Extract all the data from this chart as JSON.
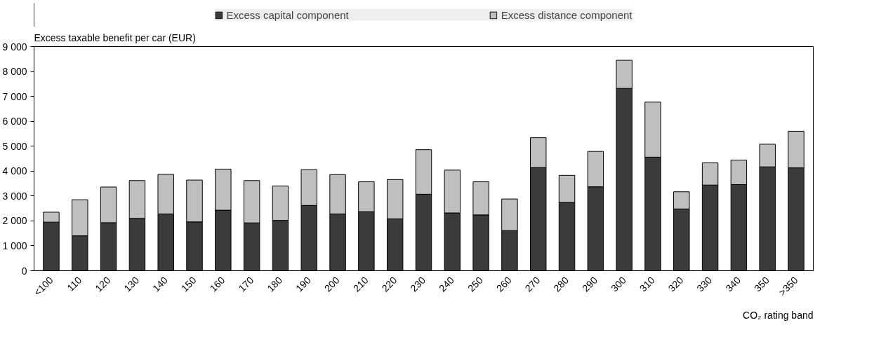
{
  "chart_data": {
    "type": "bar",
    "stacked": true,
    "ylabel": "Excess taxable benefit per car (EUR)",
    "xlabel": "CO₂ rating band",
    "categories": [
      "<100",
      "110",
      "120",
      "130",
      "140",
      "150",
      "160",
      "170",
      "180",
      "190",
      "200",
      "210",
      "220",
      "230",
      "240",
      "250",
      "260",
      "270",
      "280",
      "290",
      "300",
      "310",
      "320",
      "330",
      "340",
      "350",
      ">350"
    ],
    "series": [
      {
        "name": "Excess capital component",
        "color": "#3b3b3b",
        "values": [
          1950,
          1400,
          1930,
          2100,
          2280,
          1960,
          2430,
          1920,
          2020,
          2620,
          2280,
          2370,
          2080,
          3070,
          2320,
          2240,
          1610,
          4140,
          2740,
          3370,
          7320,
          4560,
          2480,
          3440,
          3460,
          4170,
          4130
        ]
      },
      {
        "name": "Excess distance component",
        "color": "#bfbfbf",
        "values": [
          400,
          1450,
          1430,
          1520,
          1590,
          1680,
          1650,
          1700,
          1380,
          1440,
          1580,
          1200,
          1580,
          1790,
          1720,
          1330,
          1270,
          1200,
          1090,
          1420,
          1130,
          2210,
          690,
          890,
          980,
          910,
          1470
        ]
      }
    ],
    "ylim": [
      0,
      9000
    ],
    "yticks": [
      {
        "value": 0,
        "label": "0"
      },
      {
        "value": 1000,
        "label": "1 000"
      },
      {
        "value": 2000,
        "label": "2 000"
      },
      {
        "value": 3000,
        "label": "3 000"
      },
      {
        "value": 4000,
        "label": "4 000"
      },
      {
        "value": 5000,
        "label": "5 000"
      },
      {
        "value": 6000,
        "label": "6 000"
      },
      {
        "value": 7000,
        "label": "7 000"
      },
      {
        "value": 8000,
        "label": "8 000"
      },
      {
        "value": 9000,
        "label": "9 000"
      }
    ],
    "grid": false,
    "legend": "top"
  }
}
